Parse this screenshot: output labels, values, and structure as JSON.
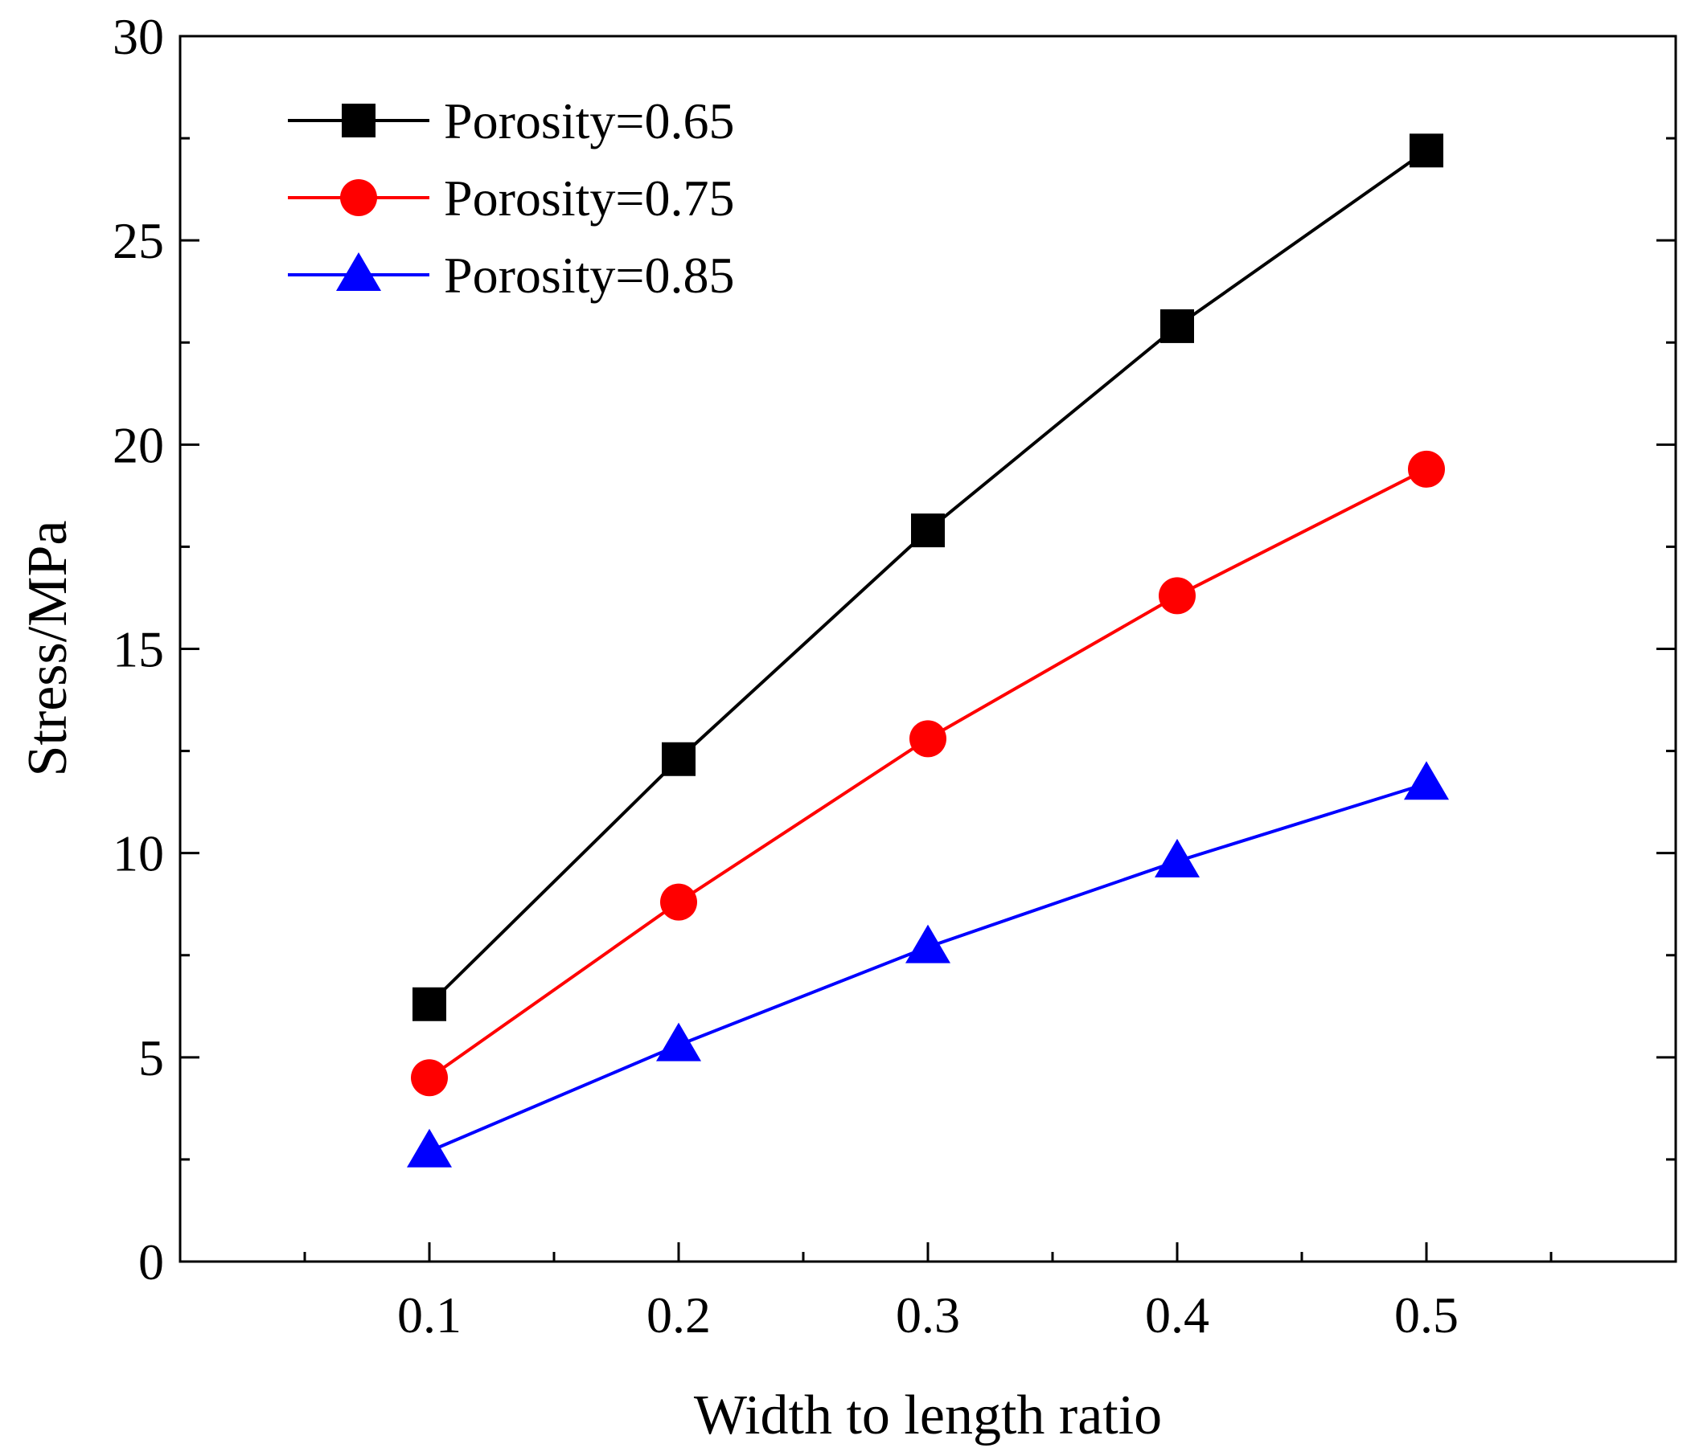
{
  "chart_data": {
    "type": "line",
    "title": "",
    "xlabel": "Width to length ratio",
    "ylabel": "Stress/MPa",
    "x": [
      0.1,
      0.2,
      0.3,
      0.4,
      0.5
    ],
    "xlim": [
      0.0,
      0.6
    ],
    "ylim": [
      0,
      30
    ],
    "x_ticks": [
      0.1,
      0.2,
      0.3,
      0.4,
      0.5
    ],
    "x_tick_labels": [
      "0.1",
      "0.2",
      "0.3",
      "0.4",
      "0.5"
    ],
    "y_ticks": [
      0,
      5,
      10,
      15,
      20,
      25,
      30
    ],
    "y_tick_labels": [
      "0",
      "5",
      "10",
      "15",
      "20",
      "25",
      "30"
    ],
    "grid": false,
    "legend_position": "top-left",
    "series": [
      {
        "name": "Porosity=0.65",
        "color": "#000000",
        "marker": "square",
        "values": [
          6.3,
          12.3,
          17.9,
          22.9,
          27.2
        ]
      },
      {
        "name": "Porosity=0.75",
        "color": "#ff0000",
        "marker": "circle",
        "values": [
          4.5,
          8.8,
          12.8,
          16.3,
          19.4
        ]
      },
      {
        "name": "Porosity=0.85",
        "color": "#0000ff",
        "marker": "triangle",
        "values": [
          2.7,
          5.3,
          7.7,
          9.8,
          11.7
        ]
      }
    ]
  }
}
